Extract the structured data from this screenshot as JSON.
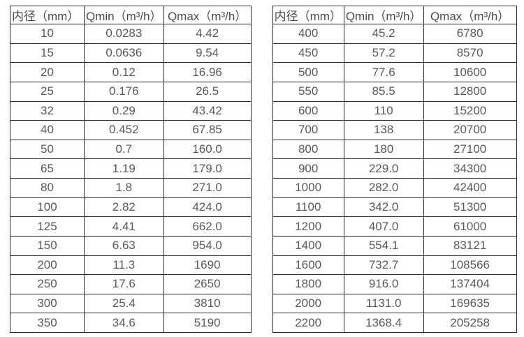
{
  "page": {
    "background_color": "#ffffff",
    "border_color": "#2b2b2b",
    "text_color": "#595959"
  },
  "tables": [
    {
      "name": "small-diameter-flow-table",
      "headers": [
        "内径（mm）",
        "Qmin（m³/h）",
        "Qmax（m³/h）"
      ],
      "rows": [
        [
          "10",
          "0.0283",
          "4.42"
        ],
        [
          "15",
          "0.0636",
          "9.54"
        ],
        [
          "20",
          "0.12",
          "16.96"
        ],
        [
          "25",
          "0.176",
          "26.5"
        ],
        [
          "32",
          "0.29",
          "43.42"
        ],
        [
          "40",
          "0.452",
          "67.85"
        ],
        [
          "50",
          "0.7",
          "160.0"
        ],
        [
          "65",
          "1.19",
          "179.0"
        ],
        [
          "80",
          "1.8",
          "271.0"
        ],
        [
          "100",
          "2.82",
          "424.0"
        ],
        [
          "125",
          "4.41",
          "662.0"
        ],
        [
          "150",
          "6.63",
          "954.0"
        ],
        [
          "200",
          "11.3",
          "1690"
        ],
        [
          "250",
          "17.6",
          "2650"
        ],
        [
          "300",
          "25.4",
          "3810"
        ],
        [
          "350",
          "34.6",
          "5190"
        ]
      ]
    },
    {
      "name": "large-diameter-flow-table",
      "headers": [
        "内径（mm）",
        "Qmin（m³/h）",
        "Qmax（m³/h）"
      ],
      "rows": [
        [
          "400",
          "45.2",
          "6780"
        ],
        [
          "450",
          "57.2",
          "8570"
        ],
        [
          "500",
          "77.6",
          "10600"
        ],
        [
          "550",
          "85.5",
          "12800"
        ],
        [
          "600",
          "110",
          "15200"
        ],
        [
          "700",
          "138",
          "20700"
        ],
        [
          "800",
          "180",
          "27100"
        ],
        [
          "900",
          "229.0",
          "34300"
        ],
        [
          "1000",
          "282.0",
          "42400"
        ],
        [
          "1100",
          "342.0",
          "51300"
        ],
        [
          "1200",
          "407.0",
          "61000"
        ],
        [
          "1400",
          "554.1",
          "83121"
        ],
        [
          "1600",
          "732.7",
          "108566"
        ],
        [
          "1800",
          "916.0",
          "137404"
        ],
        [
          "2000",
          "1131.0",
          "169635"
        ],
        [
          "2200",
          "1368.4",
          "205258"
        ]
      ]
    }
  ]
}
